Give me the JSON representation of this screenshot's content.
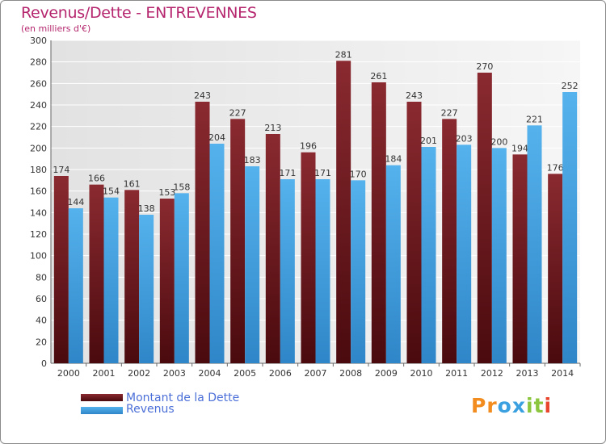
{
  "header": {
    "title": "Revenus/Dette - ENTREVENNES",
    "subtitle": "(en milliers d'€)"
  },
  "colors": {
    "title": "#b5266e",
    "dette": "#7b2328",
    "revenus": "#4aa6e2",
    "legend_text": "#4b6fd8"
  },
  "legend": {
    "dette_label": "Montant de la Dette",
    "revenus_label": "Revenus"
  },
  "logo": {
    "letters": [
      "P",
      "r",
      "o",
      "x",
      "i",
      "t",
      "i"
    ],
    "colors": [
      "#f28c1e",
      "#f28c1e",
      "#3aa0e0",
      "#3aa0e0",
      "#8cc63f",
      "#8cc63f",
      "#e8452c"
    ]
  },
  "chart_data": {
    "type": "bar",
    "categories": [
      "2000",
      "2001",
      "2002",
      "2003",
      "2004",
      "2005",
      "2006",
      "2007",
      "2008",
      "2009",
      "2010",
      "2011",
      "2012",
      "2013",
      "2014"
    ],
    "series": [
      {
        "name": "Montant de la Dette",
        "values": [
          174,
          166,
          161,
          153,
          243,
          227,
          213,
          196,
          281,
          261,
          243,
          227,
          270,
          194,
          176
        ]
      },
      {
        "name": "Revenus",
        "values": [
          144,
          154,
          138,
          158,
          204,
          183,
          171,
          171,
          170,
          184,
          201,
          203,
          200,
          221,
          252
        ]
      }
    ],
    "ylim": [
      0,
      300
    ],
    "yticks": [
      0,
      20,
      40,
      60,
      80,
      100,
      120,
      140,
      160,
      180,
      200,
      220,
      240,
      260,
      280,
      300
    ],
    "grid": true,
    "legend_position": "bottom-left"
  }
}
